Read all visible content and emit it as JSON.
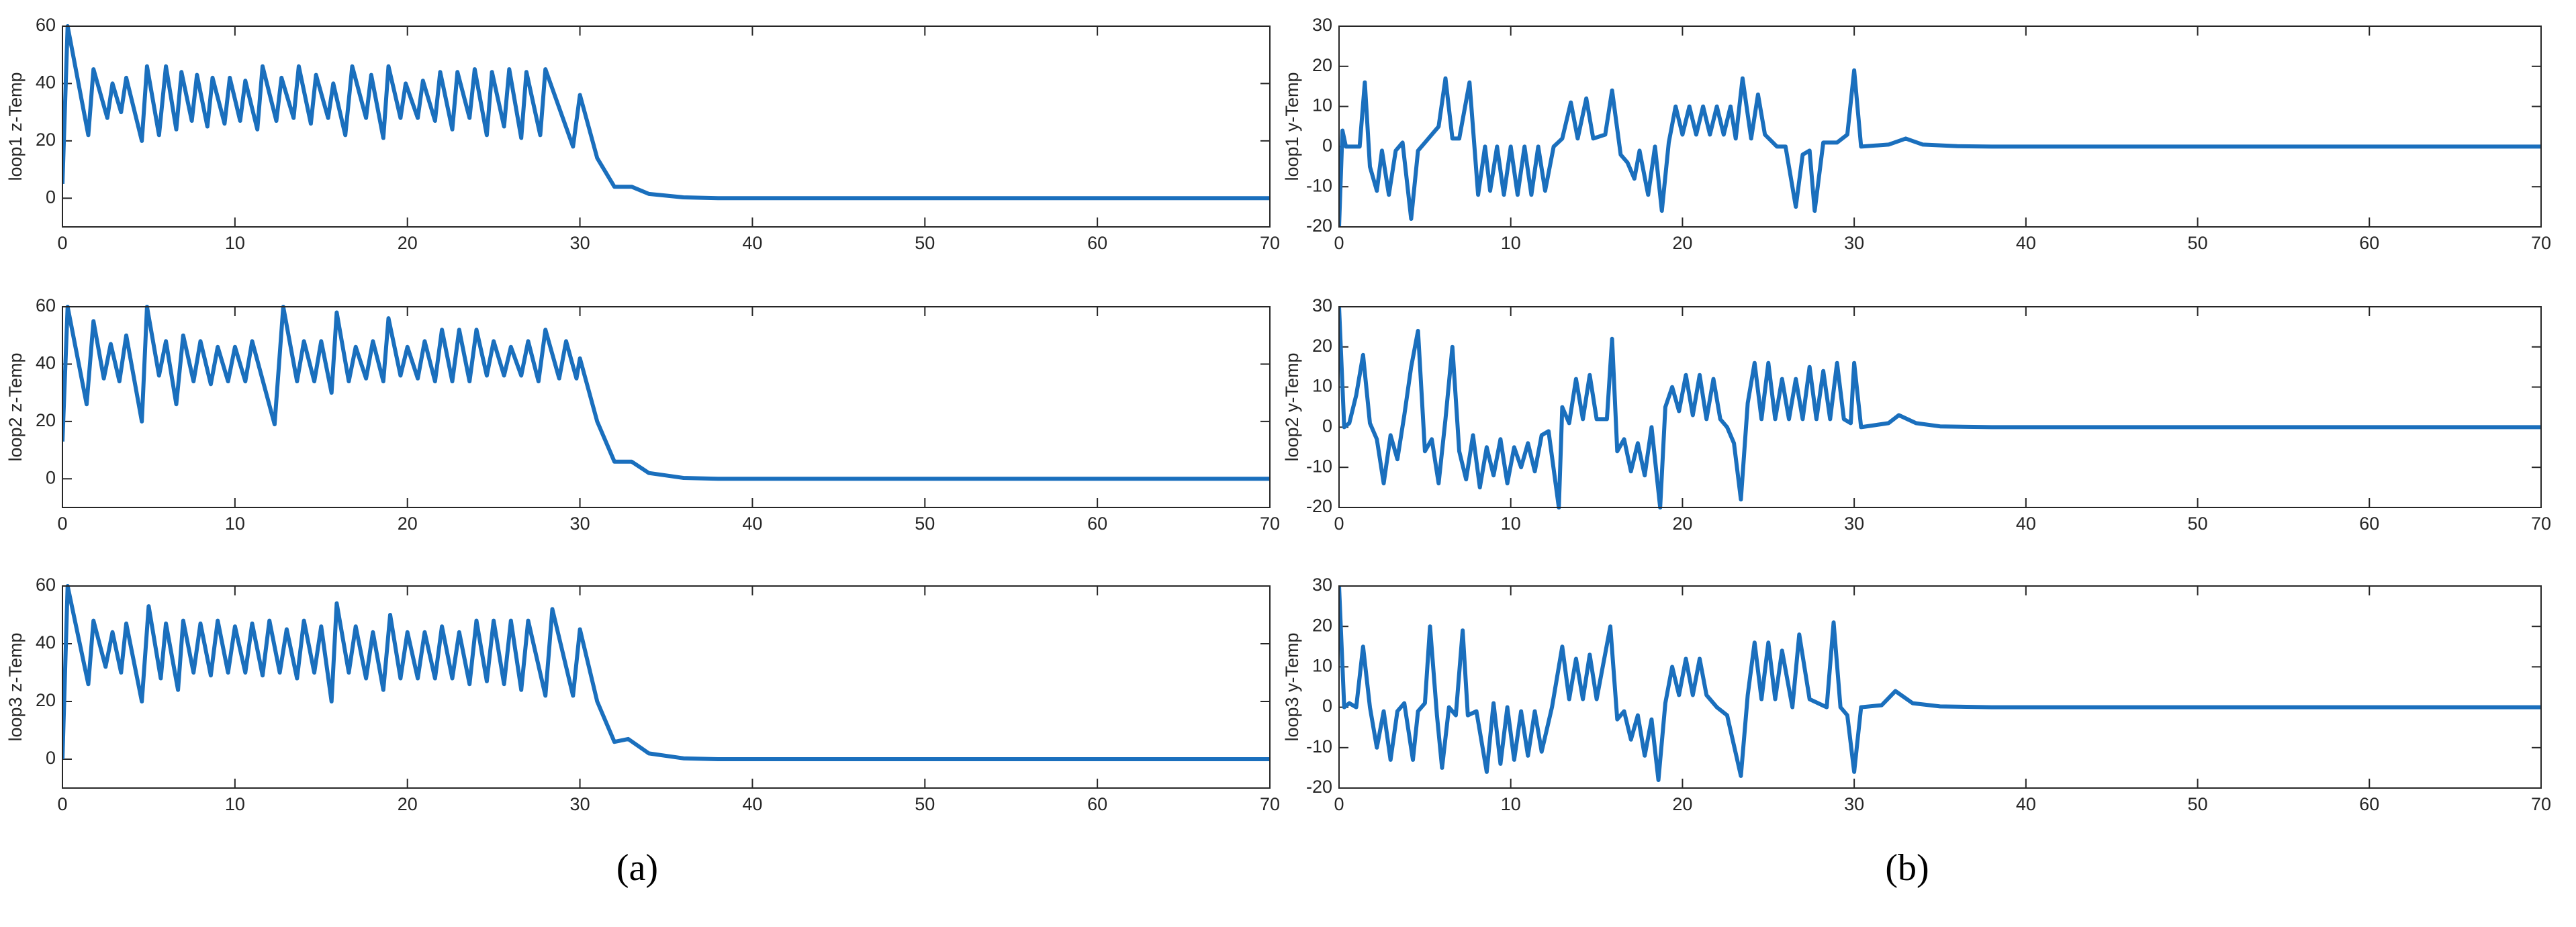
{
  "chart_data": [
    {
      "type": "line",
      "ylabel": "loop1 z-Temp",
      "xlim": [
        0,
        70
      ],
      "xticks": [
        0,
        10,
        20,
        30,
        40,
        50,
        60,
        70
      ],
      "ylim": [
        -10,
        60
      ],
      "yticks": [
        0,
        20,
        40,
        60
      ],
      "grid": false,
      "color": "#1a6fbd",
      "x": [
        0,
        0.3,
        1.5,
        1.8,
        2.6,
        2.9,
        3.4,
        3.7,
        4.6,
        4.9,
        5.6,
        6.0,
        6.6,
        6.9,
        7.5,
        7.8,
        8.4,
        8.7,
        9.4,
        9.7,
        10.3,
        10.6,
        11.3,
        11.6,
        12.4,
        12.7,
        13.4,
        13.7,
        14.4,
        14.7,
        15.4,
        15.7,
        16.4,
        16.8,
        17.6,
        17.9,
        18.6,
        18.9,
        19.6,
        19.9,
        20.6,
        20.9,
        21.6,
        21.9,
        22.6,
        22.9,
        23.6,
        23.9,
        24.6,
        24.9,
        25.6,
        25.9,
        26.6,
        26.9,
        27.7,
        28.0,
        29.6,
        30.0,
        31.0,
        32.0,
        33,
        34,
        36,
        38,
        70
      ],
      "values": [
        5,
        60,
        22,
        45,
        28,
        40,
        30,
        42,
        20,
        46,
        22,
        46,
        24,
        44,
        27,
        43,
        25,
        42,
        26,
        42,
        27,
        41,
        24,
        46,
        27,
        42,
        28,
        46,
        26,
        43,
        28,
        40,
        22,
        46,
        28,
        43,
        21,
        46,
        28,
        40,
        28,
        41,
        27,
        44,
        24,
        44,
        28,
        45,
        22,
        44,
        25,
        45,
        21,
        44,
        22,
        45,
        18,
        36,
        14,
        4,
        4,
        1.5,
        0.3,
        0,
        0
      ]
    },
    {
      "type": "line",
      "ylabel": "loop2 z-Temp",
      "xlim": [
        0,
        70
      ],
      "xticks": [
        0,
        10,
        20,
        30,
        40,
        50,
        60,
        70
      ],
      "ylim": [
        -10,
        60
      ],
      "yticks": [
        0,
        20,
        40,
        60
      ],
      "grid": false,
      "color": "#1a6fbd",
      "x": [
        0,
        0.3,
        1.4,
        1.8,
        2.4,
        2.8,
        3.3,
        3.7,
        4.6,
        4.9,
        5.6,
        6.0,
        6.6,
        7.0,
        7.6,
        8.0,
        8.6,
        9.0,
        9.6,
        10.0,
        10.6,
        11.0,
        12.3,
        12.8,
        13.6,
        14.0,
        14.6,
        15.0,
        15.6,
        15.9,
        16.6,
        17.0,
        17.6,
        18.0,
        18.6,
        18.9,
        19.6,
        20.0,
        20.6,
        21.0,
        21.6,
        22.0,
        22.6,
        23.0,
        23.6,
        24.0,
        24.6,
        25.0,
        25.6,
        26.0,
        26.6,
        27.0,
        27.6,
        28.0,
        28.8,
        29.2,
        29.8,
        30.0,
        31.0,
        32.0,
        33,
        34,
        36,
        38,
        70
      ],
      "values": [
        13,
        60,
        26,
        55,
        35,
        47,
        34,
        50,
        20,
        60,
        36,
        48,
        26,
        50,
        34,
        48,
        33,
        46,
        34,
        46,
        34,
        48,
        19,
        60,
        34,
        48,
        34,
        48,
        30,
        58,
        34,
        46,
        35,
        48,
        34,
        56,
        36,
        46,
        35,
        48,
        34,
        52,
        34,
        52,
        34,
        52,
        36,
        48,
        36,
        46,
        36,
        48,
        34,
        52,
        35,
        48,
        35,
        42,
        20,
        6,
        6,
        2,
        0.3,
        0,
        0
      ]
    },
    {
      "type": "line",
      "ylabel": "loop3 z-Temp",
      "xlim": [
        0,
        70
      ],
      "xticks": [
        0,
        10,
        20,
        30,
        40,
        50,
        60,
        70
      ],
      "ylim": [
        -10,
        60
      ],
      "yticks": [
        0,
        20,
        40,
        60
      ],
      "grid": false,
      "color": "#1a6fbd",
      "x": [
        0,
        0.3,
        1.5,
        1.8,
        2.5,
        2.9,
        3.4,
        3.7,
        4.6,
        5.0,
        5.7,
        6.0,
        6.7,
        7.0,
        7.6,
        8.0,
        8.6,
        9.0,
        9.6,
        10.0,
        10.6,
        11.0,
        11.6,
        12.0,
        12.6,
        13.0,
        13.6,
        14.0,
        14.6,
        15.0,
        15.6,
        15.9,
        16.6,
        17.0,
        17.6,
        18.0,
        18.6,
        19.0,
        19.6,
        20.0,
        20.6,
        21.0,
        21.6,
        22.0,
        22.6,
        23.0,
        23.6,
        24.0,
        24.6,
        25.0,
        25.6,
        26.0,
        26.6,
        27.0,
        28.0,
        28.4,
        29.6,
        30.0,
        31.0,
        32.0,
        32.8,
        34,
        36,
        38,
        70
      ],
      "values": [
        0,
        60,
        26,
        48,
        32,
        44,
        30,
        47,
        20,
        53,
        28,
        47,
        24,
        48,
        30,
        47,
        29,
        48,
        30,
        46,
        30,
        47,
        29,
        48,
        30,
        45,
        28,
        48,
        30,
        46,
        20,
        54,
        30,
        46,
        28,
        44,
        24,
        50,
        28,
        44,
        28,
        44,
        28,
        46,
        28,
        44,
        26,
        48,
        27,
        48,
        26,
        48,
        24,
        48,
        22,
        52,
        22,
        45,
        20,
        6,
        7,
        2,
        0.3,
        0,
        0
      ]
    },
    {
      "type": "line",
      "ylabel": "loop1 y-Temp",
      "xlim": [
        0,
        70
      ],
      "xticks": [
        0,
        10,
        20,
        30,
        40,
        50,
        60,
        70
      ],
      "ylim": [
        -20,
        30
      ],
      "yticks": [
        -20,
        -10,
        0,
        10,
        20,
        30
      ],
      "grid": false,
      "color": "#1a6fbd",
      "x": [
        0,
        0.2,
        0.4,
        1.2,
        1.5,
        1.8,
        2.2,
        2.5,
        2.9,
        3.3,
        3.7,
        4.2,
        4.6,
        5.0,
        5.8,
        6.2,
        6.6,
        7.0,
        7.6,
        8.1,
        8.5,
        8.8,
        9.2,
        9.6,
        10.0,
        10.4,
        10.8,
        11.2,
        11.6,
        12.0,
        12.5,
        13.0,
        13.5,
        13.9,
        14.4,
        14.8,
        15.5,
        15.9,
        16.4,
        16.8,
        17.2,
        17.5,
        18.0,
        18.4,
        18.8,
        19.2,
        19.6,
        20.0,
        20.4,
        20.8,
        21.2,
        21.6,
        22.0,
        22.4,
        22.8,
        23.1,
        23.5,
        24.0,
        24.4,
        24.8,
        25.5,
        26.0,
        26.6,
        27.0,
        27.4,
        27.7,
        28.2,
        29.0,
        29.6,
        30.0,
        30.4,
        32,
        33,
        34,
        36,
        38,
        70
      ],
      "values": [
        -20,
        4,
        0,
        0,
        16,
        -5,
        -11,
        -1,
        -12,
        -1,
        1,
        -18,
        -1,
        1,
        5,
        17,
        2,
        2,
        16,
        -12,
        0,
        -11,
        0,
        -12,
        0,
        -12,
        0,
        -12,
        0,
        -11,
        0,
        2,
        11,
        2,
        12,
        2,
        3,
        14,
        -2,
        -4,
        -8,
        -1,
        -12,
        0,
        -16,
        1,
        10,
        3,
        10,
        3,
        10,
        3,
        10,
        3,
        10,
        2,
        17,
        2,
        13,
        3,
        0,
        0,
        -15,
        -2,
        -1,
        -16,
        1,
        1,
        3,
        19,
        0,
        0.5,
        2,
        0.5,
        0.1,
        0,
        0
      ]
    },
    {
      "type": "line",
      "ylabel": "loop2 y-Temp",
      "xlim": [
        0,
        70
      ],
      "xticks": [
        0,
        10,
        20,
        30,
        40,
        50,
        60,
        70
      ],
      "ylim": [
        -20,
        30
      ],
      "yticks": [
        -20,
        -10,
        0,
        10,
        20,
        30
      ],
      "grid": false,
      "color": "#1a6fbd",
      "x": [
        0,
        0.3,
        0.6,
        1.0,
        1.4,
        1.8,
        2.2,
        2.6,
        3.0,
        3.4,
        3.8,
        4.2,
        4.6,
        5.0,
        5.4,
        5.8,
        6.2,
        6.6,
        7.0,
        7.4,
        7.8,
        8.2,
        8.6,
        9.0,
        9.4,
        9.8,
        10.2,
        10.6,
        11.0,
        11.4,
        11.8,
        12.2,
        12.8,
        13.0,
        13.4,
        13.8,
        14.2,
        14.6,
        15.0,
        15.6,
        15.9,
        16.2,
        16.6,
        17.0,
        17.4,
        17.8,
        18.2,
        18.7,
        19.0,
        19.4,
        19.8,
        20.2,
        20.6,
        21.0,
        21.4,
        21.8,
        22.2,
        22.6,
        23.0,
        23.4,
        23.8,
        24.2,
        24.6,
        25.0,
        25.4,
        25.8,
        26.2,
        26.6,
        27.0,
        27.4,
        27.8,
        28.2,
        28.6,
        29.0,
        29.4,
        29.8,
        30.0,
        30.4,
        32,
        32.6,
        33.6,
        35,
        38,
        70
      ],
      "values": [
        30,
        0,
        1,
        8,
        18,
        1,
        -3,
        -14,
        -2,
        -8,
        3,
        15,
        24,
        -6,
        -3,
        -14,
        2,
        20,
        -6,
        -13,
        -2,
        -15,
        -5,
        -12,
        -3,
        -14,
        -5,
        -10,
        -4,
        -11,
        -2,
        -1,
        -20,
        5,
        1,
        12,
        2,
        13,
        2,
        2,
        22,
        -6,
        -3,
        -11,
        -4,
        -12,
        0,
        -20,
        5,
        10,
        4,
        13,
        3,
        13,
        2,
        12,
        2,
        0,
        -4,
        -18,
        6,
        16,
        2,
        16,
        2,
        12,
        2,
        12,
        2,
        15,
        2,
        14,
        2,
        16,
        2,
        1,
        16,
        0,
        1,
        3,
        1,
        0.2,
        0,
        0
      ]
    },
    {
      "type": "line",
      "ylabel": "loop3 y-Temp",
      "xlim": [
        0,
        70
      ],
      "xticks": [
        0,
        10,
        20,
        30,
        40,
        50,
        60,
        70
      ],
      "ylim": [
        -20,
        30
      ],
      "yticks": [
        -20,
        -10,
        0,
        10,
        20,
        30
      ],
      "grid": false,
      "color": "#1a6fbd",
      "x": [
        0,
        0.3,
        0.6,
        1.0,
        1.4,
        1.8,
        2.2,
        2.6,
        3.0,
        3.4,
        3.8,
        4.3,
        4.6,
        5.0,
        5.3,
        5.7,
        6.0,
        6.4,
        6.8,
        7.2,
        7.5,
        8.0,
        8.6,
        9.0,
        9.4,
        9.8,
        10.2,
        10.6,
        11.0,
        11.4,
        11.8,
        12.4,
        13.0,
        13.4,
        13.8,
        14.2,
        14.6,
        15.0,
        15.8,
        16.2,
        16.6,
        17.0,
        17.4,
        17.8,
        18.2,
        18.6,
        19.0,
        19.4,
        19.8,
        20.2,
        20.6,
        21.0,
        21.4,
        22.0,
        22.6,
        23.4,
        23.8,
        24.2,
        24.6,
        25.0,
        25.4,
        25.8,
        26.4,
        26.8,
        27.4,
        28.4,
        28.8,
        29.2,
        29.6,
        30.0,
        30.4,
        31.6,
        32.4,
        33.4,
        35,
        38,
        70
      ],
      "values": [
        30,
        0,
        1,
        0,
        15,
        0,
        -10,
        -1,
        -13,
        -1,
        1,
        -13,
        -1,
        1,
        20,
        -2,
        -15,
        0,
        -2,
        19,
        -2,
        -1,
        -16,
        1,
        -14,
        0,
        -13,
        -1,
        -12,
        -1,
        -11,
        0,
        15,
        2,
        12,
        2,
        13,
        2,
        20,
        -3,
        -1,
        -8,
        -2,
        -12,
        -3,
        -18,
        1,
        10,
        3,
        12,
        3,
        12,
        3,
        0,
        -2,
        -17,
        3,
        16,
        2,
        16,
        2,
        14,
        0,
        18,
        2,
        0,
        21,
        0,
        -2,
        -16,
        0,
        0.5,
        4,
        1,
        0.2,
        0,
        0
      ]
    }
  ],
  "captions": [
    "(a)",
    "(b)"
  ]
}
